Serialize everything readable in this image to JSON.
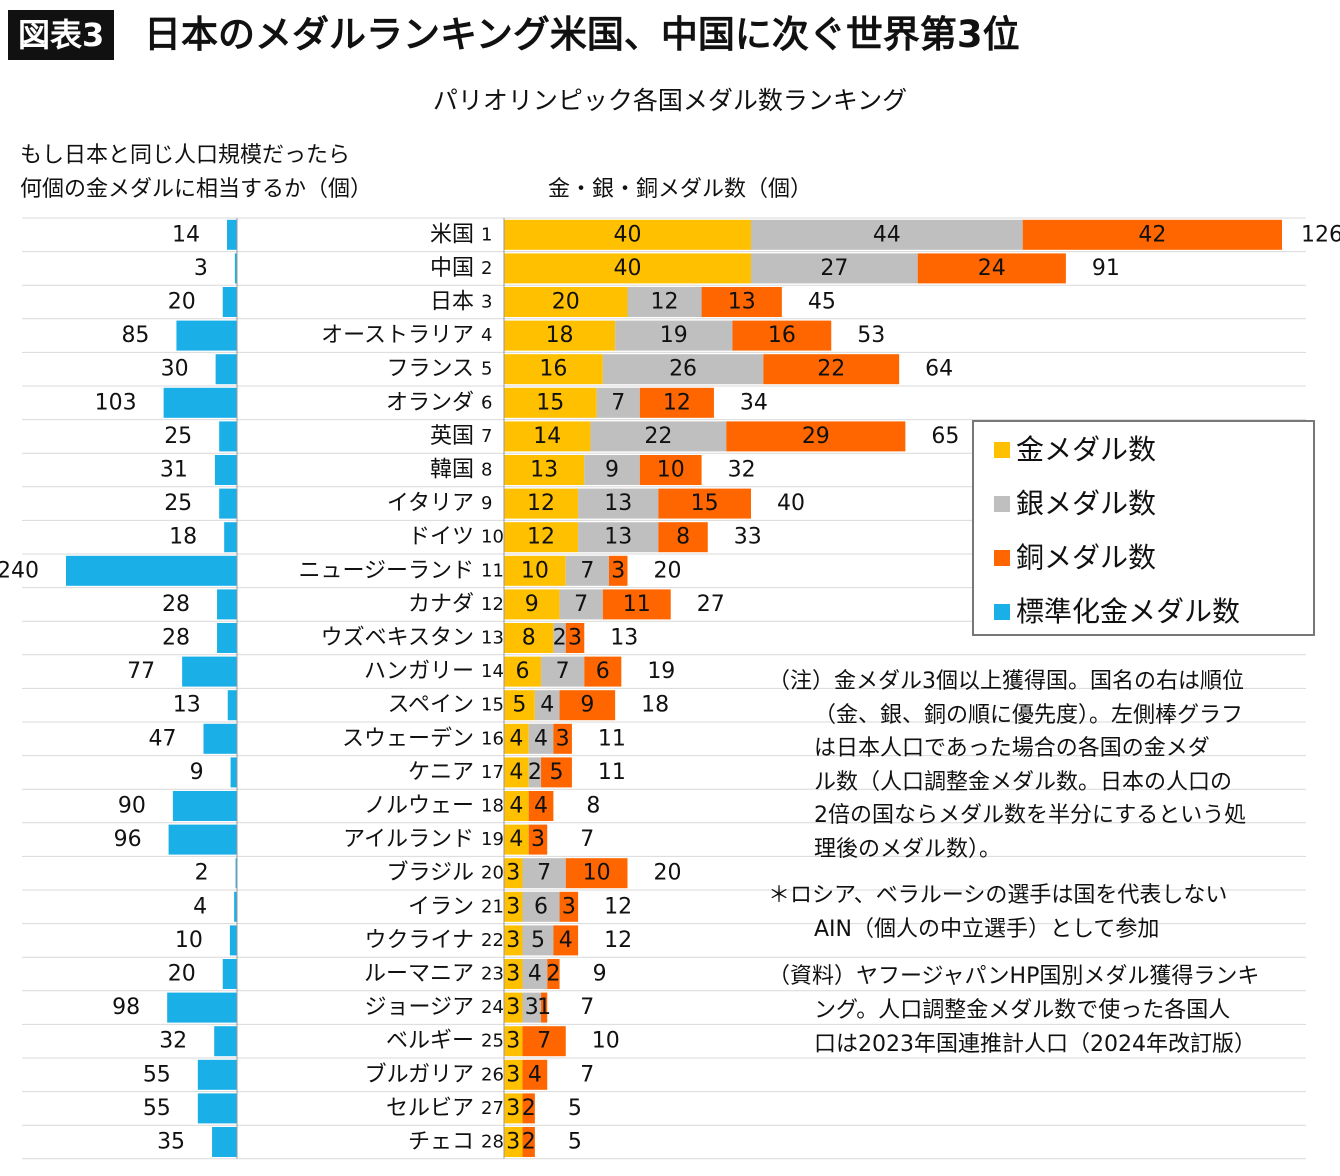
{
  "header": {
    "tag": "図表3",
    "title": "日本のメダルランキング米国、中国に次ぐ世界第3位",
    "subtitle": "パリオリンピック各国メダル数ランキング"
  },
  "captions": {
    "left_line1": "もし日本と同じ人口規模だったら",
    "left_line2": "何個の金メダルに相当するか（個）",
    "right": "金・銀・銅メダル数（個）"
  },
  "legend": {
    "gold": "金メダル数",
    "silver": "銀メダル数",
    "bronze": "銅メダル数",
    "normalized": "標準化金メダル数"
  },
  "colors": {
    "gold": "#FFC000",
    "silver": "#BFBFBF",
    "bronze": "#FF6600",
    "normalized": "#1AAFE6"
  },
  "notes": {
    "n1": "（注）金メダル3個以上獲得国。国名の右は順位",
    "n2": "（金、銀、銅の順に優先度）。左側棒グラフ",
    "n3": "は日本人口であった場合の各国の金メダ",
    "n4": "ル数（人口調整金メダル数。日本の人口の",
    "n5": "2倍の国ならメダル数を半分にするという処",
    "n6": "理後のメダル数）。",
    "n7": "＊ロシア、ベラルーシの選手は国を代表しない",
    "n8": "AIN（個人の中立選手）として参加",
    "n9": "（資料）ヤフージャパンHP国別メダル獲得ランキ",
    "n10": "ング。人口調整金メダル数で使った各国人",
    "n11": "口は2023年国連推計人口（2024年改訂版）"
  },
  "chart_data": {
    "type": "bar",
    "orientation": "horizontal",
    "categories": [
      "米国",
      "中国",
      "日本",
      "オーストラリア",
      "フランス",
      "オランダ",
      "英国",
      "韓国",
      "イタリア",
      "ドイツ",
      "ニュージーランド",
      "カナダ",
      "ウズベキスタン",
      "ハンガリー",
      "スペイン",
      "スウェーデン",
      "ケニア",
      "ノルウェー",
      "アイルランド",
      "ブラジル",
      "イラン",
      "ウクライナ",
      "ルーマニア",
      "ジョージア",
      "ベルギー",
      "ブルガリア",
      "セルビア",
      "チェコ"
    ],
    "ranks": [
      "1",
      "2",
      "3",
      "4",
      "5",
      "6",
      "7",
      "8",
      "9",
      "10",
      "11",
      "12",
      "13",
      "14",
      "15",
      "16",
      "17",
      "18",
      "19",
      "20",
      "21",
      "22",
      "23",
      "24",
      "25",
      "26",
      "27",
      "28"
    ],
    "series": [
      {
        "name": "金メダル数",
        "values": [
          40,
          40,
          20,
          18,
          16,
          15,
          14,
          13,
          12,
          12,
          10,
          9,
          8,
          6,
          5,
          4,
          4,
          4,
          4,
          3,
          3,
          3,
          3,
          3,
          3,
          3,
          3,
          3
        ]
      },
      {
        "name": "銀メダル数",
        "values": [
          44,
          27,
          12,
          19,
          26,
          7,
          22,
          9,
          13,
          13,
          7,
          7,
          2,
          7,
          4,
          4,
          2,
          0,
          0,
          7,
          6,
          5,
          4,
          3,
          0,
          0,
          0,
          0
        ]
      },
      {
        "name": "銅メダル数",
        "values": [
          42,
          24,
          13,
          16,
          22,
          12,
          29,
          10,
          15,
          8,
          3,
          11,
          3,
          6,
          9,
          3,
          5,
          4,
          3,
          10,
          3,
          4,
          2,
          1,
          7,
          4,
          2,
          2
        ]
      }
    ],
    "totals": [
      126,
      91,
      45,
      53,
      64,
      34,
      65,
      32,
      40,
      33,
      20,
      27,
      13,
      19,
      18,
      11,
      11,
      8,
      7,
      20,
      12,
      12,
      9,
      7,
      10,
      7,
      5,
      5
    ],
    "normalized_gold": {
      "name": "標準化金メダル数",
      "values": [
        14,
        3,
        20,
        85,
        30,
        103,
        25,
        31,
        25,
        18,
        240,
        28,
        28,
        77,
        13,
        47,
        9,
        90,
        96,
        2,
        4,
        10,
        20,
        98,
        32,
        55,
        55,
        35
      ]
    },
    "xlabel": "金・銀・銅メダル数（個）",
    "ylabel": "",
    "xlim": [
      0,
      126
    ],
    "grid": true,
    "legend_position": "right"
  }
}
